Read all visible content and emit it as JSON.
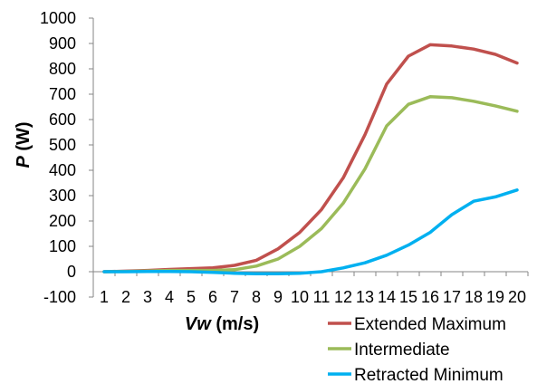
{
  "chart_data": {
    "type": "line",
    "title": "",
    "xlabel": {
      "var": "Vw",
      "unit": " (m/s)"
    },
    "ylabel": {
      "var": "P",
      "unit": " (W)"
    },
    "x": [
      1,
      2,
      3,
      4,
      5,
      6,
      7,
      8,
      9,
      10,
      11,
      12,
      13,
      14,
      15,
      16,
      17,
      18,
      19,
      20
    ],
    "ylim": [
      -100,
      1000
    ],
    "yticks": [
      -100,
      0,
      100,
      200,
      300,
      400,
      500,
      600,
      700,
      800,
      900,
      1000
    ],
    "grid": false,
    "legend_position": "bottom-right",
    "series": [
      {
        "name": "Extended Maximum",
        "color": "#c0504d",
        "values": [
          0,
          2,
          5,
          9,
          12,
          15,
          25,
          45,
          90,
          155,
          245,
          370,
          540,
          740,
          850,
          895,
          890,
          878,
          857,
          823
        ]
      },
      {
        "name": "Intermediate",
        "color": "#9bbb59",
        "values": [
          0,
          1,
          3,
          5,
          5,
          5,
          8,
          22,
          50,
          100,
          170,
          270,
          405,
          575,
          660,
          690,
          686,
          672,
          654,
          633
        ]
      },
      {
        "name": "Retracted Minimum",
        "color": "#00b0f0",
        "values": [
          0,
          0,
          1,
          1,
          0,
          -3,
          -6,
          -8,
          -8,
          -6,
          0,
          15,
          35,
          65,
          105,
          155,
          225,
          278,
          295,
          322
        ]
      }
    ]
  }
}
